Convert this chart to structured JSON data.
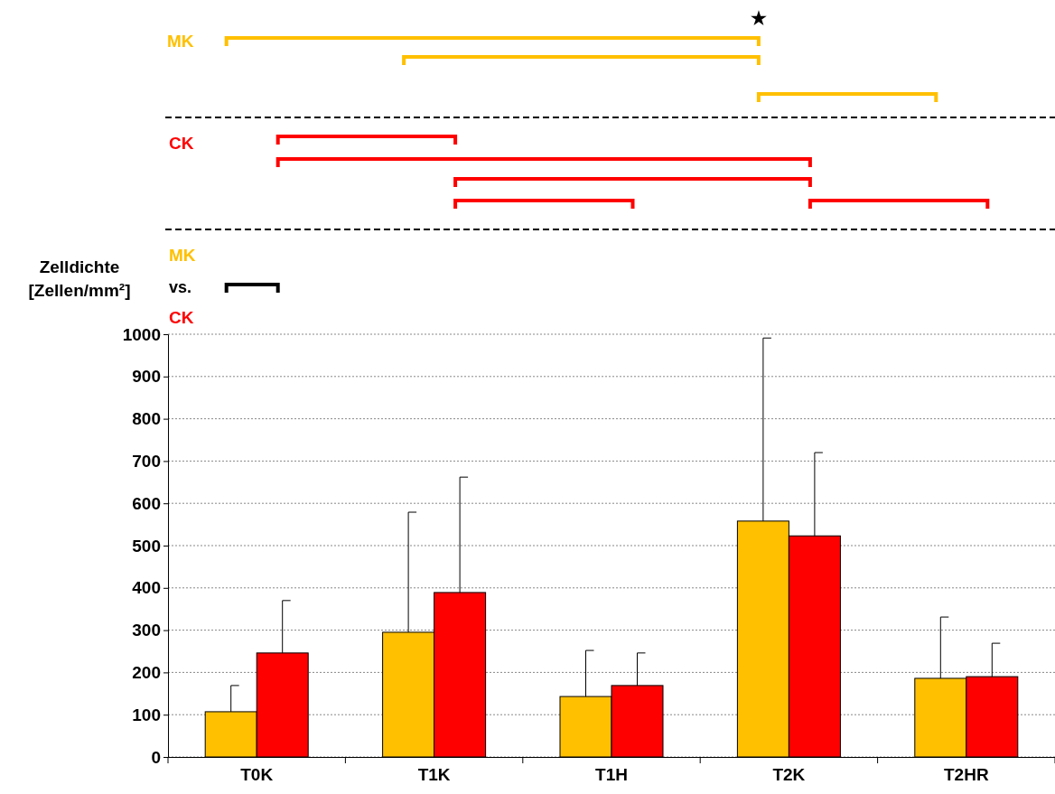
{
  "chart_data": {
    "type": "bar",
    "ylabel": "Zelldichte [Zellen/mm²]",
    "categories": [
      "T0K",
      "T1K",
      "T1H",
      "T2K",
      "T2HR"
    ],
    "series": [
      {
        "name": "MK",
        "color": "#ffc000",
        "values": [
          107,
          295,
          143,
          558,
          186
        ],
        "errors": [
          [
            107,
            169
          ],
          [
            295,
            579
          ],
          [
            143,
            252
          ],
          [
            558,
            991
          ],
          [
            186,
            331
          ]
        ]
      },
      {
        "name": "CK",
        "color": "#ff0000",
        "values": [
          246,
          389,
          169,
          523,
          190
        ],
        "errors": [
          [
            246,
            370
          ],
          [
            389,
            662
          ],
          [
            169,
            246
          ],
          [
            523,
            720
          ],
          [
            190,
            269
          ]
        ]
      }
    ],
    "ylim": [
      0,
      1000
    ],
    "yticks": [
      0,
      100,
      200,
      300,
      400,
      500,
      600,
      700,
      800,
      900,
      1000
    ],
    "grid": "y",
    "annotations": [
      "MK",
      "CK",
      "★",
      "vs."
    ]
  }
}
